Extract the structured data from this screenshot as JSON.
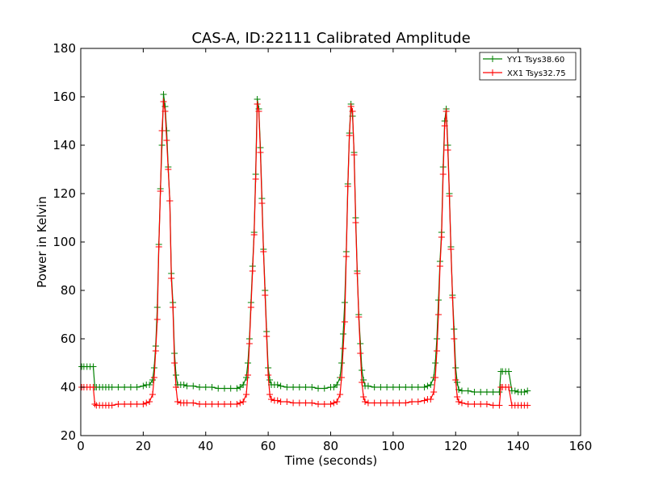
{
  "chart_data": {
    "type": "line",
    "title": "CAS-A, ID:22111 Calibrated Amplitude",
    "xlabel": "Time (seconds)",
    "ylabel": "Power in Kelvin",
    "xlim": [
      0,
      160
    ],
    "ylim": [
      20,
      180
    ],
    "xticks": [
      "0",
      "20",
      "40",
      "60",
      "80",
      "100",
      "120",
      "140",
      "160"
    ],
    "yticks": [
      "20",
      "40",
      "60",
      "80",
      "100",
      "120",
      "140",
      "160",
      "180"
    ],
    "grid": false,
    "legend_position": "top-right",
    "marker": "+",
    "series": [
      {
        "name": "YY1 Tsys38.60",
        "color": "#008000",
        "points": [
          [
            0.3,
            48.5
          ],
          [
            1,
            48.5
          ],
          [
            2,
            48.5
          ],
          [
            3,
            48.5
          ],
          [
            4,
            48.5
          ],
          [
            4.5,
            40
          ],
          [
            5,
            40
          ],
          [
            6,
            40
          ],
          [
            7,
            40
          ],
          [
            8,
            40
          ],
          [
            9,
            40
          ],
          [
            10,
            40
          ],
          [
            12,
            40
          ],
          [
            14,
            40
          ],
          [
            16,
            40
          ],
          [
            18,
            40
          ],
          [
            20,
            40.5
          ],
          [
            21,
            41
          ],
          [
            22,
            41
          ],
          [
            23,
            43
          ],
          [
            23.5,
            48
          ],
          [
            24,
            57
          ],
          [
            24.5,
            73
          ],
          [
            25,
            99
          ],
          [
            25.5,
            122
          ],
          [
            26,
            140
          ],
          [
            26.5,
            161
          ],
          [
            27,
            156
          ],
          [
            27.5,
            146
          ],
          [
            28,
            131
          ],
          [
            28.5,
            117
          ],
          [
            29,
            87
          ],
          [
            29.5,
            75
          ],
          [
            30,
            54
          ],
          [
            30.5,
            45
          ],
          [
            31,
            41
          ],
          [
            32,
            41
          ],
          [
            33,
            41
          ],
          [
            34,
            40.5
          ],
          [
            36,
            40.5
          ],
          [
            38,
            40
          ],
          [
            40,
            40
          ],
          [
            42,
            40
          ],
          [
            44,
            39.5
          ],
          [
            46,
            39.5
          ],
          [
            48,
            39.5
          ],
          [
            50,
            39.5
          ],
          [
            51,
            40
          ],
          [
            52,
            41
          ],
          [
            53,
            44
          ],
          [
            53.5,
            50
          ],
          [
            54,
            60
          ],
          [
            54.5,
            75
          ],
          [
            55,
            90
          ],
          [
            55.5,
            104
          ],
          [
            56,
            128
          ],
          [
            56.5,
            159
          ],
          [
            57,
            155
          ],
          [
            57.5,
            139
          ],
          [
            58,
            118
          ],
          [
            58.5,
            97
          ],
          [
            59,
            80
          ],
          [
            59.5,
            63
          ],
          [
            60,
            48
          ],
          [
            60.5,
            43
          ],
          [
            61,
            41
          ],
          [
            62,
            41
          ],
          [
            63,
            41
          ],
          [
            64,
            40.5
          ],
          [
            66,
            40
          ],
          [
            68,
            40
          ],
          [
            70,
            40
          ],
          [
            72,
            40
          ],
          [
            74,
            40
          ],
          [
            76,
            39.5
          ],
          [
            78,
            39.5
          ],
          [
            80,
            40
          ],
          [
            81,
            40
          ],
          [
            82,
            41
          ],
          [
            83,
            44
          ],
          [
            83.5,
            50
          ],
          [
            84,
            62
          ],
          [
            84.5,
            75
          ],
          [
            85,
            96
          ],
          [
            85.5,
            124
          ],
          [
            86,
            145
          ],
          [
            86.5,
            157
          ],
          [
            87,
            152
          ],
          [
            87.5,
            137
          ],
          [
            88,
            110
          ],
          [
            88.5,
            88
          ],
          [
            89,
            70
          ],
          [
            89.5,
            58
          ],
          [
            90,
            47
          ],
          [
            90.5,
            43
          ],
          [
            91,
            40.5
          ],
          [
            92,
            40.5
          ],
          [
            94,
            40
          ],
          [
            96,
            40
          ],
          [
            98,
            40
          ],
          [
            100,
            40
          ],
          [
            102,
            40
          ],
          [
            104,
            40
          ],
          [
            106,
            40
          ],
          [
            108,
            40
          ],
          [
            110,
            40
          ],
          [
            111,
            40.5
          ],
          [
            112,
            41
          ],
          [
            113,
            44
          ],
          [
            113.5,
            50
          ],
          [
            114,
            60
          ],
          [
            114.5,
            76
          ],
          [
            115,
            92
          ],
          [
            115.5,
            104
          ],
          [
            116,
            131
          ],
          [
            116.5,
            150
          ],
          [
            117,
            155
          ],
          [
            117.5,
            140
          ],
          [
            118,
            120
          ],
          [
            118.5,
            98
          ],
          [
            119,
            78
          ],
          [
            119.5,
            64
          ],
          [
            120,
            48
          ],
          [
            120.5,
            42
          ],
          [
            121,
            39
          ],
          [
            122,
            38.5
          ],
          [
            124,
            38.5
          ],
          [
            126,
            38
          ],
          [
            128,
            38
          ],
          [
            130,
            38
          ],
          [
            132,
            38
          ],
          [
            134,
            38
          ],
          [
            134.5,
            46.5
          ],
          [
            135,
            46.5
          ],
          [
            136,
            46.5
          ],
          [
            137,
            46.5
          ],
          [
            138,
            38.5
          ],
          [
            139,
            38.5
          ],
          [
            140,
            38
          ],
          [
            141,
            38
          ],
          [
            142,
            38
          ],
          [
            143,
            38.5
          ]
        ]
      },
      {
        "name": "XX1 Tsys32.75",
        "color": "#ff0000",
        "points": [
          [
            0.3,
            40
          ],
          [
            1,
            40
          ],
          [
            2,
            40
          ],
          [
            3,
            40
          ],
          [
            4,
            40
          ],
          [
            4.5,
            33
          ],
          [
            5,
            32.5
          ],
          [
            6,
            32.5
          ],
          [
            7,
            32.5
          ],
          [
            8,
            32.5
          ],
          [
            9,
            32.5
          ],
          [
            10,
            32.5
          ],
          [
            12,
            33
          ],
          [
            14,
            33
          ],
          [
            16,
            33
          ],
          [
            18,
            33
          ],
          [
            20,
            33
          ],
          [
            21,
            33.5
          ],
          [
            22,
            34
          ],
          [
            23,
            37
          ],
          [
            23.5,
            44
          ],
          [
            24,
            55
          ],
          [
            24.5,
            68
          ],
          [
            25,
            98
          ],
          [
            25.5,
            121
          ],
          [
            26,
            146
          ],
          [
            26.5,
            158
          ],
          [
            27,
            154
          ],
          [
            27.5,
            142
          ],
          [
            28,
            130
          ],
          [
            28.5,
            117
          ],
          [
            29,
            85
          ],
          [
            29.5,
            73
          ],
          [
            30,
            50
          ],
          [
            30.5,
            40
          ],
          [
            31,
            34
          ],
          [
            32,
            33.5
          ],
          [
            33,
            33.5
          ],
          [
            34,
            33.5
          ],
          [
            36,
            33.5
          ],
          [
            38,
            33
          ],
          [
            40,
            33
          ],
          [
            42,
            33
          ],
          [
            44,
            33
          ],
          [
            46,
            33
          ],
          [
            48,
            33
          ],
          [
            50,
            33
          ],
          [
            51,
            33.5
          ],
          [
            52,
            34
          ],
          [
            53,
            37
          ],
          [
            53.5,
            45
          ],
          [
            54,
            58
          ],
          [
            54.5,
            73
          ],
          [
            55,
            88
          ],
          [
            55.5,
            103
          ],
          [
            56,
            126
          ],
          [
            56.5,
            157
          ],
          [
            57,
            154
          ],
          [
            57.5,
            137
          ],
          [
            58,
            116
          ],
          [
            58.5,
            96
          ],
          [
            59,
            78
          ],
          [
            59.5,
            61
          ],
          [
            60,
            45
          ],
          [
            60.5,
            37
          ],
          [
            61,
            35
          ],
          [
            62,
            34.5
          ],
          [
            63,
            34.5
          ],
          [
            64,
            34
          ],
          [
            66,
            34
          ],
          [
            68,
            33.5
          ],
          [
            70,
            33.5
          ],
          [
            72,
            33.5
          ],
          [
            74,
            33.5
          ],
          [
            76,
            33
          ],
          [
            78,
            33
          ],
          [
            80,
            33
          ],
          [
            81,
            33.5
          ],
          [
            82,
            34
          ],
          [
            83,
            37
          ],
          [
            83.5,
            44
          ],
          [
            84,
            56
          ],
          [
            84.5,
            67
          ],
          [
            85,
            94
          ],
          [
            85.5,
            123
          ],
          [
            86,
            144
          ],
          [
            86.5,
            156
          ],
          [
            87,
            154
          ],
          [
            87.5,
            136
          ],
          [
            88,
            108
          ],
          [
            88.5,
            87
          ],
          [
            89,
            69
          ],
          [
            89.5,
            54
          ],
          [
            90,
            42
          ],
          [
            90.5,
            36
          ],
          [
            91,
            34
          ],
          [
            92,
            33.5
          ],
          [
            94,
            33.5
          ],
          [
            96,
            33.5
          ],
          [
            98,
            33.5
          ],
          [
            100,
            33.5
          ],
          [
            102,
            33.5
          ],
          [
            104,
            33.5
          ],
          [
            106,
            34
          ],
          [
            108,
            34
          ],
          [
            110,
            34.5
          ],
          [
            111,
            35
          ],
          [
            112,
            35
          ],
          [
            113,
            38
          ],
          [
            113.5,
            44
          ],
          [
            114,
            55
          ],
          [
            114.5,
            70
          ],
          [
            115,
            90
          ],
          [
            115.5,
            102
          ],
          [
            116,
            128
          ],
          [
            116.5,
            148
          ],
          [
            117,
            154
          ],
          [
            117.5,
            138
          ],
          [
            118,
            119
          ],
          [
            118.5,
            97
          ],
          [
            119,
            77
          ],
          [
            119.5,
            60
          ],
          [
            120,
            43
          ],
          [
            120.5,
            36
          ],
          [
            121,
            34
          ],
          [
            122,
            33.5
          ],
          [
            124,
            33
          ],
          [
            126,
            33
          ],
          [
            128,
            33
          ],
          [
            130,
            33
          ],
          [
            132,
            32.5
          ],
          [
            134,
            32.5
          ],
          [
            134.5,
            40
          ],
          [
            135,
            40
          ],
          [
            136,
            40
          ],
          [
            137,
            40
          ],
          [
            138,
            32.5
          ],
          [
            139,
            32.5
          ],
          [
            140,
            32.5
          ],
          [
            141,
            32.5
          ],
          [
            142,
            32.5
          ],
          [
            143,
            32.5
          ]
        ]
      }
    ]
  }
}
